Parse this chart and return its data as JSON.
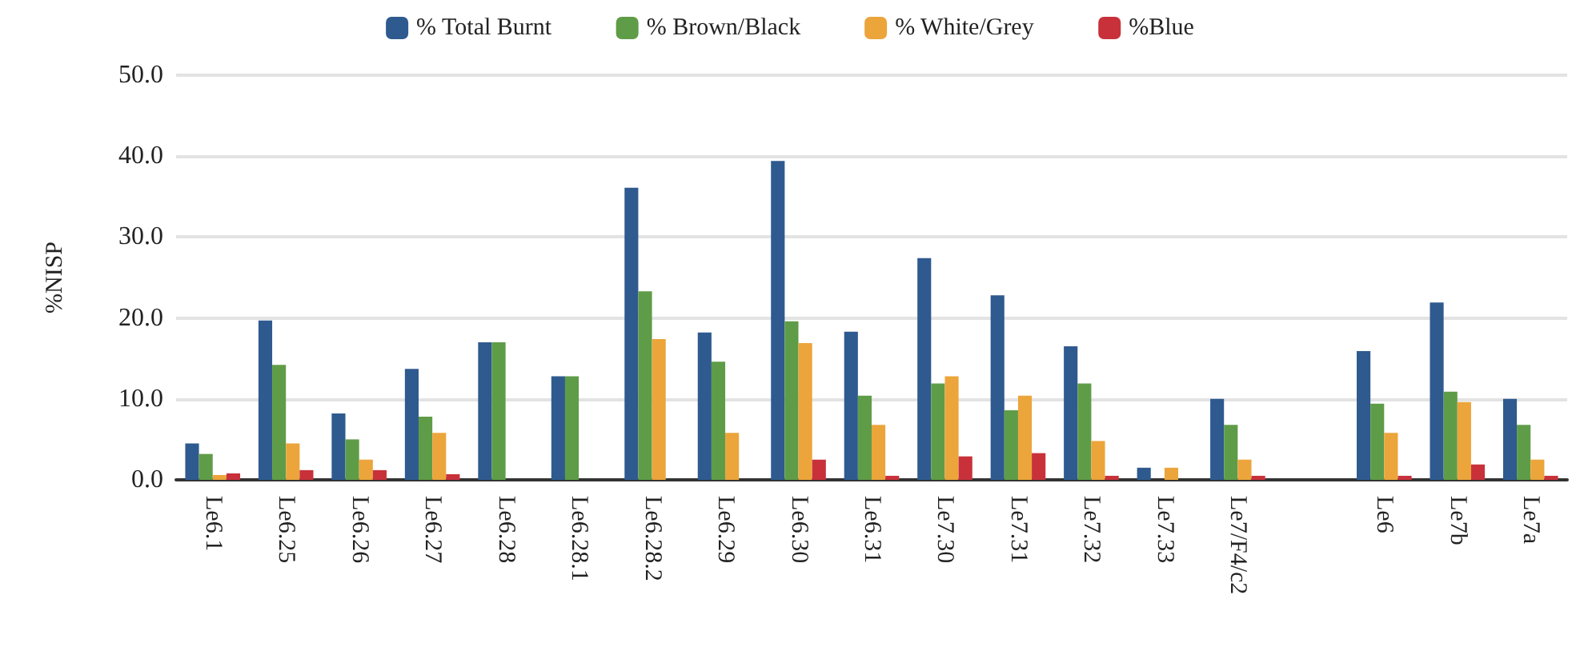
{
  "chart_data": {
    "type": "bar",
    "ylabel": "%NISP",
    "categories": [
      "Le6.1",
      "Le6.25",
      "Le6.26",
      "Le6.27",
      "Le6.28",
      "Le6.28.1",
      "Le6.28.2",
      "Le6.29",
      "Le6.30",
      "Le6.31",
      "Le7.30",
      "Le7.31",
      "Le7.32",
      "Le7.33",
      "Le7/F4/c2",
      null,
      "Le6",
      "Le7b",
      "Le7a"
    ],
    "series": [
      {
        "name": "% Total Burnt",
        "color": "#2e5a8f",
        "values": [
          4.5,
          19.7,
          8.2,
          13.7,
          17.0,
          12.8,
          36.1,
          18.2,
          39.4,
          18.3,
          27.4,
          22.8,
          16.5,
          1.5,
          10.0,
          null,
          15.9,
          21.9,
          10.0
        ]
      },
      {
        "name": "% Brown/Black",
        "color": "#5f9c48",
        "values": [
          3.2,
          14.2,
          5.0,
          7.8,
          17.0,
          12.8,
          23.3,
          14.6,
          19.6,
          10.4,
          11.9,
          8.6,
          11.9,
          0,
          6.8,
          null,
          9.4,
          10.9,
          6.8
        ]
      },
      {
        "name": "% White/Grey",
        "color": "#eca53b",
        "values": [
          0.6,
          4.5,
          2.5,
          5.8,
          0,
          0,
          17.4,
          5.8,
          16.9,
          6.8,
          12.8,
          10.4,
          4.8,
          1.5,
          2.5,
          null,
          5.8,
          9.6,
          2.5
        ]
      },
      {
        "name": "%Blue",
        "color": "#c8313a",
        "values": [
          0.8,
          1.2,
          1.2,
          0.7,
          0,
          0,
          0,
          0,
          2.5,
          0.5,
          2.9,
          3.3,
          0.5,
          0,
          0.5,
          null,
          0.5,
          1.9,
          0.5
        ]
      }
    ],
    "ylim": [
      0,
      50
    ],
    "yticks": [
      {
        "value": 0,
        "label": "0.0"
      },
      {
        "value": 10,
        "label": "10.0"
      },
      {
        "value": 20,
        "label": "20.0"
      },
      {
        "value": 30,
        "label": "30.0"
      },
      {
        "value": 40,
        "label": "40.0"
      },
      {
        "value": 50,
        "label": "50.0"
      }
    ],
    "grid": "y",
    "legend": "top"
  }
}
